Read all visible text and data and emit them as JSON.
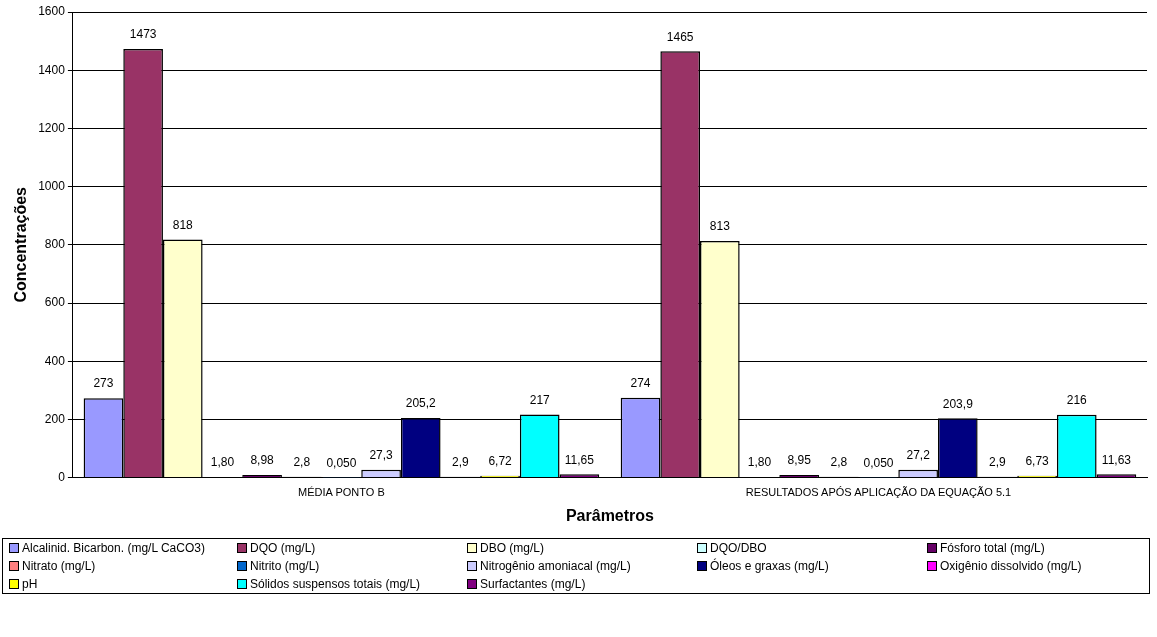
{
  "chart_data": {
    "type": "bar",
    "xlabel": "Parâmetros",
    "ylabel": "Concentrações",
    "categories": [
      "MÉDIA PONTO B",
      "RESULTADOS APÓS APLICAÇÃO DA EQUAÇÃO 5.1"
    ],
    "ylim": [
      0,
      1600
    ],
    "yticks": [
      0,
      200,
      400,
      600,
      800,
      1000,
      1200,
      1400,
      1600
    ],
    "grid": "y",
    "legend": "bottom",
    "series": [
      {
        "name": "Alcalinid. Bicarbon. (mg/L CaCO3)",
        "color": "#9999ff",
        "values": [
          273,
          274
        ],
        "value_labels": [
          "273",
          "274"
        ]
      },
      {
        "name": "DQO (mg/L)",
        "color": "#993366",
        "values": [
          1473,
          1465
        ],
        "value_labels": [
          "1473",
          "1465"
        ]
      },
      {
        "name": "DBO (mg/L)",
        "color": "#ffffcc",
        "values": [
          818,
          813
        ],
        "value_labels": [
          "818",
          "813"
        ]
      },
      {
        "name": "DQO/DBO",
        "color": "#ccffff",
        "values": [
          1.8,
          1.8
        ],
        "value_labels": [
          "1,80",
          "1,80"
        ]
      },
      {
        "name": "Fósforo total (mg/L)",
        "color": "#660066",
        "values": [
          8.98,
          8.95
        ],
        "value_labels": [
          "8,98",
          "8,95"
        ]
      },
      {
        "name": "Nitrato (mg/L)",
        "color": "#ff8080",
        "values": [
          2.8,
          2.8
        ],
        "value_labels": [
          "2,8",
          "2,8"
        ]
      },
      {
        "name": "Nitrito (mg/L)",
        "color": "#0066cc",
        "values": [
          0.05,
          0.05
        ],
        "value_labels": [
          "0,050",
          "0,050"
        ]
      },
      {
        "name": "Nitrogênio amoniacal (mg/L)",
        "color": "#ccccff",
        "values": [
          27.3,
          27.2
        ],
        "value_labels": [
          "27,3",
          "27,2"
        ]
      },
      {
        "name": "Óleos e graxas (mg/L)",
        "color": "#000080",
        "values": [
          205.2,
          203.9
        ],
        "value_labels": [
          "205,2",
          "203,9"
        ]
      },
      {
        "name": "Oxigênio dissolvido (mg/L)",
        "color": "#ff00ff",
        "values": [
          2.9,
          2.9
        ],
        "value_labels": [
          "2,9",
          "2,9"
        ]
      },
      {
        "name": "pH",
        "color": "#ffff00",
        "values": [
          6.72,
          6.73
        ],
        "value_labels": [
          "6,72",
          "6,73"
        ]
      },
      {
        "name": "Sólidos suspensos totais (mg/L)",
        "color": "#00ffff",
        "values": [
          217,
          216
        ],
        "value_labels": [
          "217",
          "216"
        ]
      },
      {
        "name": "Surfactantes (mg/L)",
        "color": "#800080",
        "values": [
          11.65,
          11.63
        ],
        "value_labels": [
          "11,65",
          "11,63"
        ]
      }
    ]
  }
}
